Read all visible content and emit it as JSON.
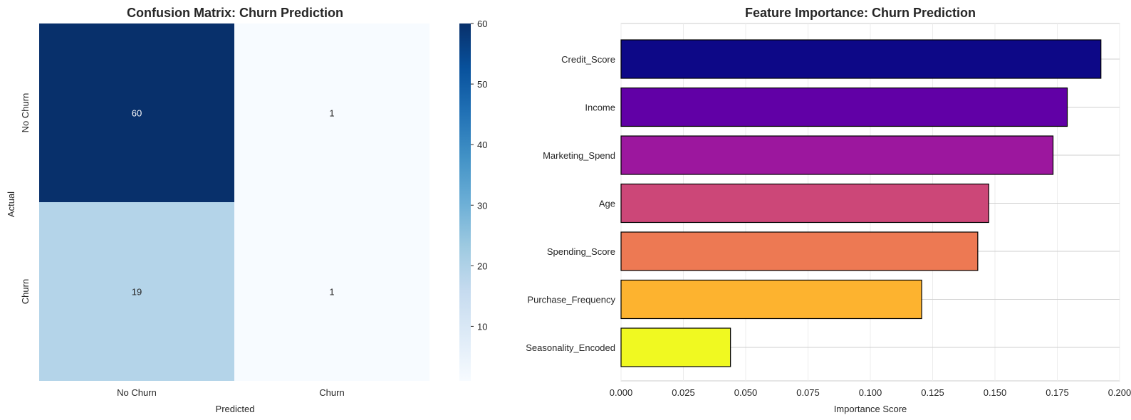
{
  "chart_data": [
    {
      "type": "heatmap",
      "title": "Confusion Matrix: Churn Prediction",
      "xlabel": "Predicted",
      "ylabel": "Actual",
      "x_categories": [
        "No Churn",
        "Churn"
      ],
      "y_categories": [
        "No Churn",
        "Churn"
      ],
      "values": [
        [
          60,
          1
        ],
        [
          19,
          1
        ]
      ],
      "colormap": "Blues",
      "colorbar": {
        "min": 1,
        "max": 60,
        "ticks": [
          10,
          20,
          30,
          40,
          50,
          60
        ]
      }
    },
    {
      "type": "bar",
      "orientation": "horizontal",
      "title": "Feature Importance: Churn Prediction",
      "xlabel": "Importance Score",
      "ylabel": "",
      "categories": [
        "Credit_Score",
        "Income",
        "Marketing_Spend",
        "Age",
        "Spending_Score",
        "Purchase_Frequency",
        "Seasonality_Encoded"
      ],
      "values": [
        0.1925,
        0.179,
        0.1733,
        0.1475,
        0.1431,
        0.1206,
        0.0439
      ],
      "colors": [
        "#0d0887",
        "#6100a6",
        "#9c179e",
        "#cc4778",
        "#ed7953",
        "#fdb32f",
        "#f0f921"
      ],
      "xlim": [
        0,
        0.2
      ],
      "xticks": [
        "0.000",
        "0.025",
        "0.050",
        "0.075",
        "0.100",
        "0.125",
        "0.150",
        "0.175",
        "0.200"
      ],
      "grid": true
    }
  ]
}
